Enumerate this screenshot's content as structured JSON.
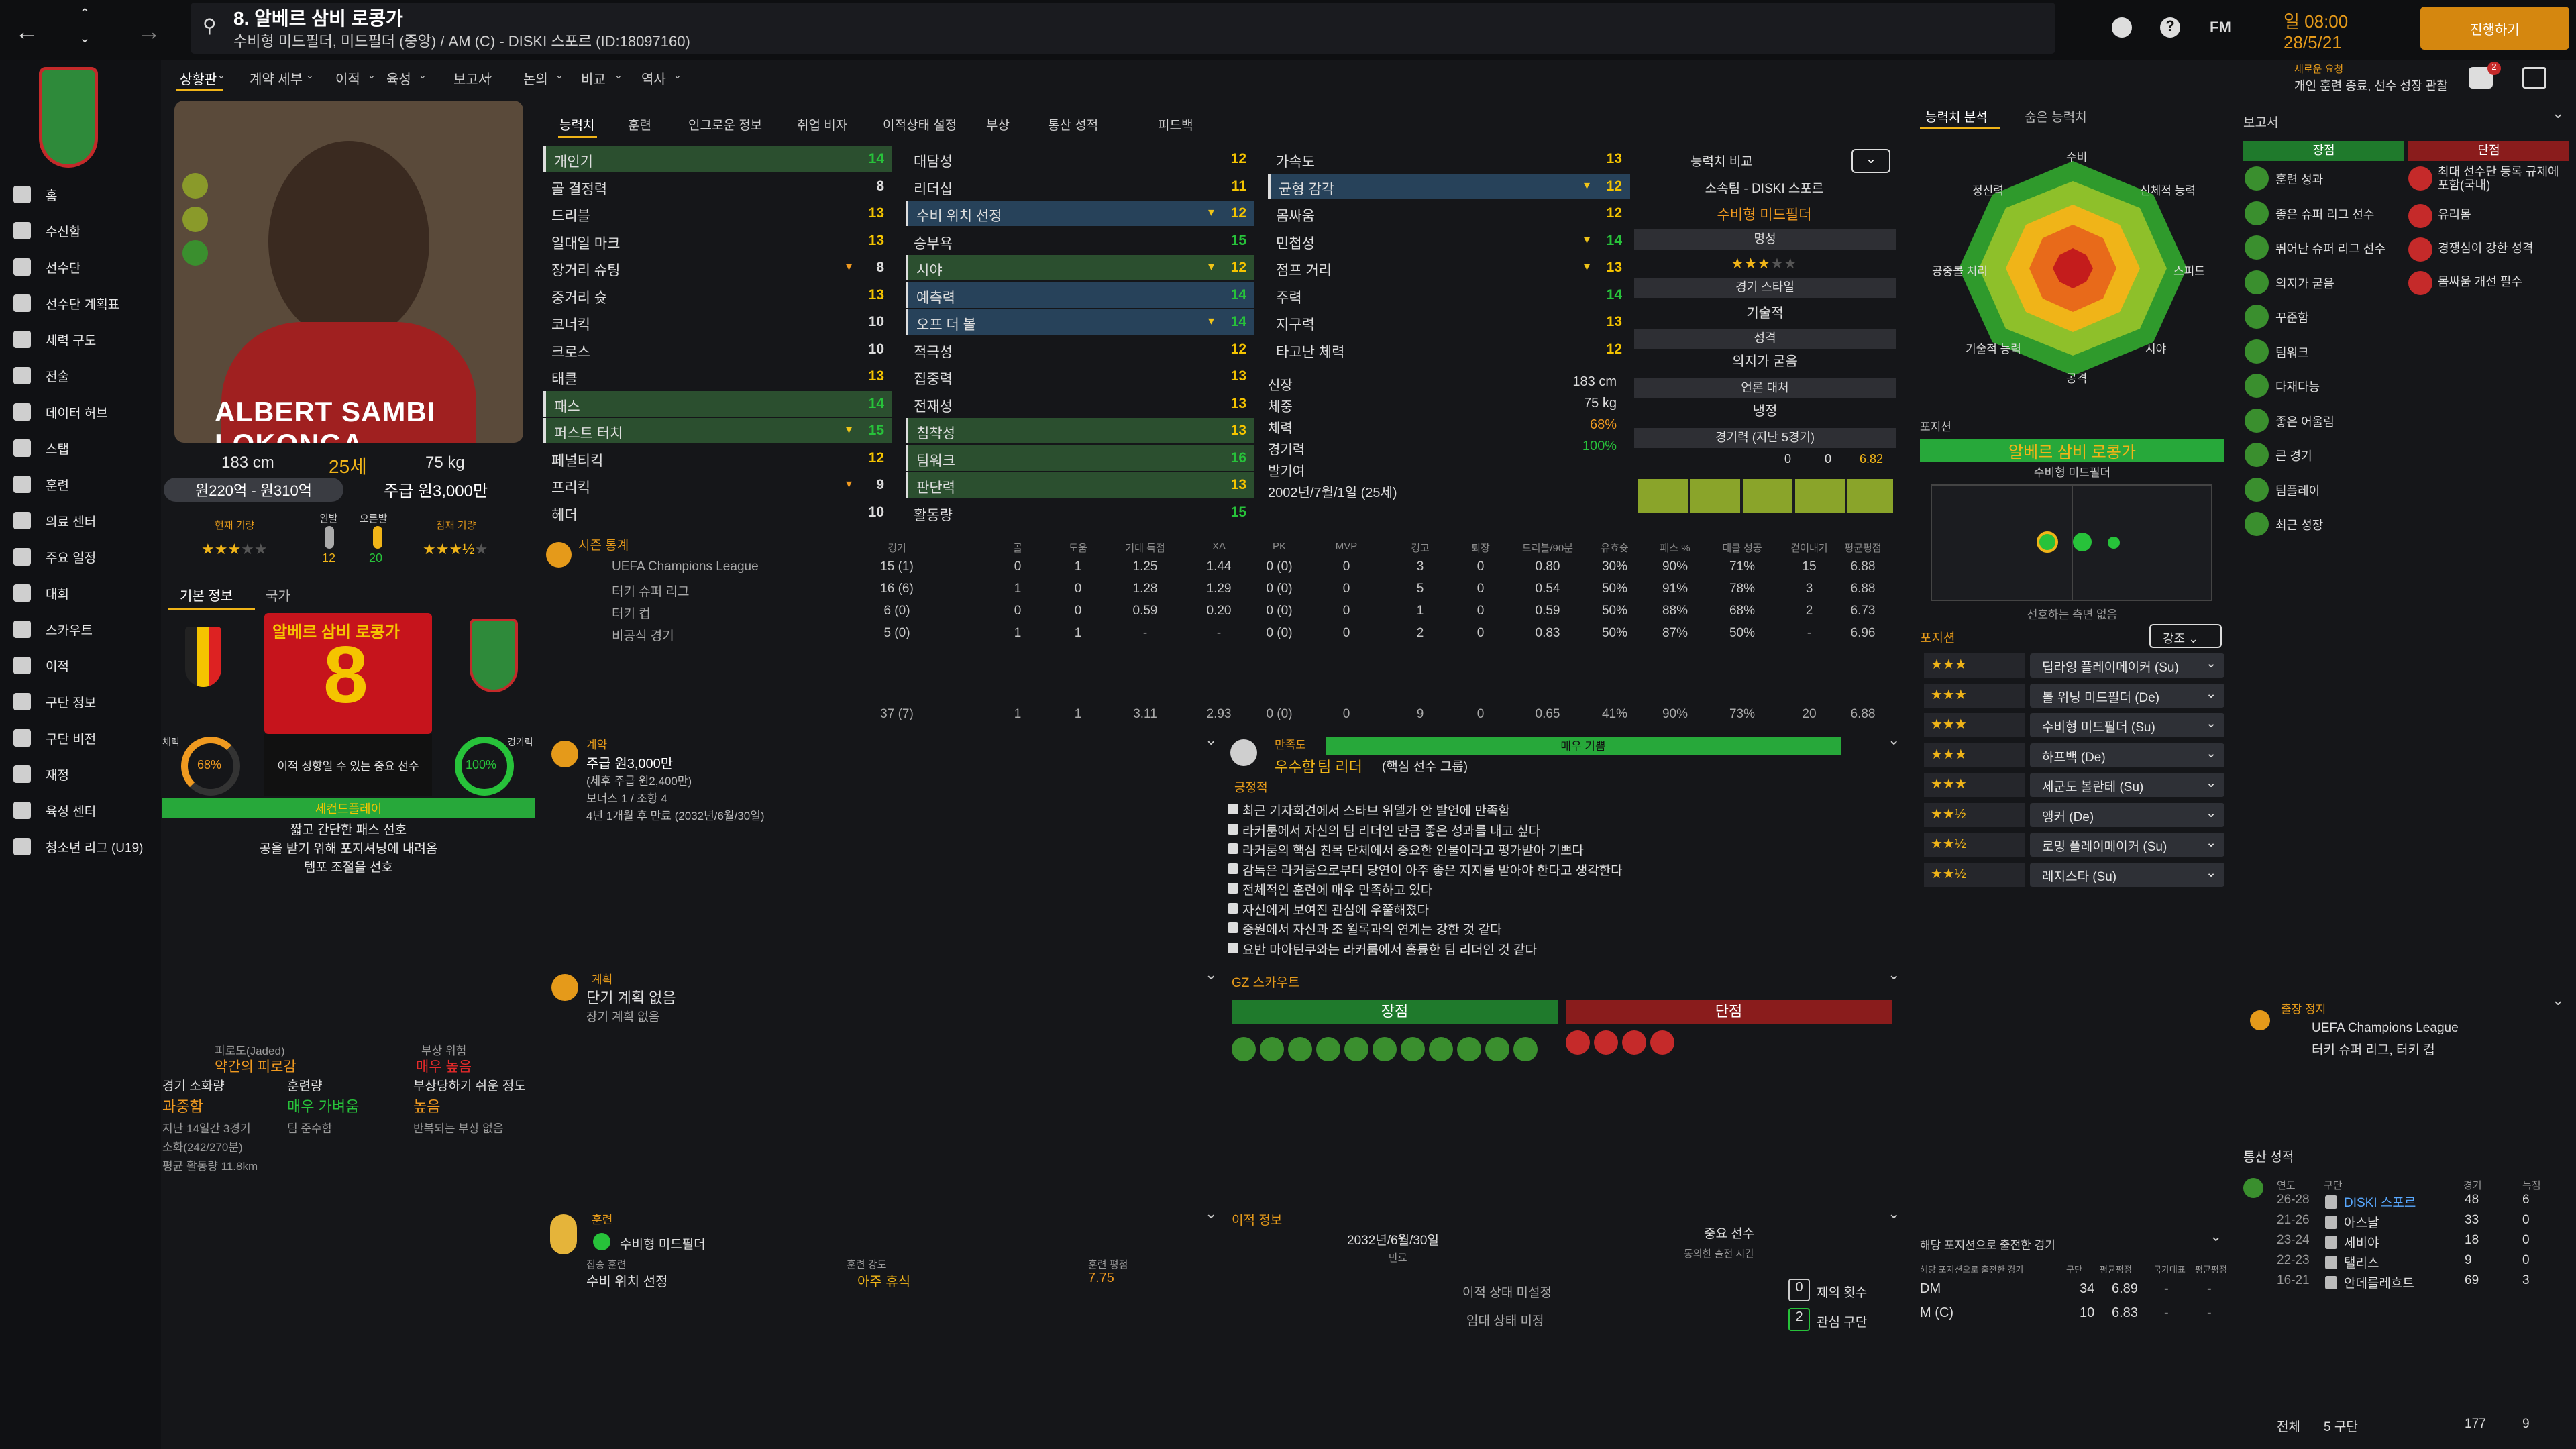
{
  "topbar": {
    "title": "8. 알베르 삼비 로콩가",
    "subtitle": "수비형 미드필더, 미드필더 (중앙) / AM (C) - DISKI 스포르 (ID:18097160)",
    "date_line1": "일 08:00",
    "date_line2": "28/5/21",
    "continue": "진행하기",
    "notif_title": "새로운 요청",
    "notif_text": "개인 훈련 종료, 선수 성장 관찰",
    "fm": "FM"
  },
  "menu": [
    "상황판",
    "계약 세부",
    "이적",
    "육성",
    "보고서",
    "논의",
    "비교",
    "역사"
  ],
  "sidebar": [
    "홈",
    "수신함",
    "선수단",
    "선수단 계획표",
    "세력 구도",
    "전술",
    "데이터 허브",
    "스탭",
    "훈련",
    "의료 센터",
    "주요 일정",
    "대회",
    "스카우트",
    "이적",
    "구단 정보",
    "구단 비전",
    "재정",
    "육성 센터",
    "청소년 리그 (U19)"
  ],
  "player": {
    "name_card": "ALBERT SAMBI LOKONGA",
    "height": "183 cm",
    "age": "25세",
    "weight": "75 kg",
    "value": "원220억 - 원310억",
    "wage": "주급 원3,000만",
    "cur_lbl": "현재 기량",
    "foot_l": "왼발",
    "foot_r": "오른발",
    "foot_lv": "12",
    "foot_rv": "20",
    "pot_lbl": "잠재 기량"
  },
  "info_tabs": [
    "기본 정보",
    "국가"
  ],
  "shirt": {
    "name": "알베르 삼비 로콩가",
    "number": "8",
    "phys_lbl": "체력",
    "phys": "68%",
    "sharp_lbl": "경기력",
    "sharp": "100%",
    "desc": "이적 성향일 수 있는 중요 선수",
    "role": "세컨드플레이",
    "traits": [
      "짧고 간단한 패스 선호",
      "공을 받기 위해 포지셔닝에 내려옴",
      "템포 조절을 선호"
    ]
  },
  "fatigue": {
    "lbl1": "피로도(Jaded)",
    "lbl2": "부상 위험",
    "v1": "약간의 피로감",
    "v2": "매우 높음",
    "l3": "경기 소화량",
    "l4": "훈련량",
    "l5": "부상당하기 쉬운 정도",
    "v3": "과중함",
    "v4": "매우 가벼움",
    "v5": "높음",
    "n1": "지난 14일간 3경기",
    "n2": "팀 준수함",
    "n3": "반복되는 부상 없음",
    "n4": "소화(242/270분)",
    "n5": "평균 활동량 11.8km"
  },
  "tabs": [
    "능력치",
    "훈련",
    "인그로운 정보",
    "취업 비자",
    "이적상태 설정",
    "부상",
    "통산 성적",
    "피드백"
  ],
  "attr_col1": [
    [
      "개인기",
      "14"
    ],
    [
      "골 결정력",
      "8"
    ],
    [
      "드리블",
      "13"
    ],
    [
      "일대일 마크",
      "13"
    ],
    [
      "장거리 슈팅",
      "8"
    ],
    [
      "중거리 슛",
      "13"
    ],
    [
      "코너킥",
      "10"
    ],
    [
      "크로스",
      "10"
    ],
    [
      "태클",
      "13"
    ],
    [
      "패스",
      "14"
    ],
    [
      "퍼스트 터치",
      "15"
    ],
    [
      "페널티킥",
      "12"
    ],
    [
      "프리킥",
      "9"
    ],
    [
      "헤더",
      "10"
    ]
  ],
  "attr_col2": [
    [
      "대담성",
      "12"
    ],
    [
      "리더십",
      "11"
    ],
    [
      "수비 위치 선정",
      "12"
    ],
    [
      "승부욕",
      "15"
    ],
    [
      "시야",
      "12"
    ],
    [
      "예측력",
      "14"
    ],
    [
      "오프 더 볼",
      "14"
    ],
    [
      "적극성",
      "12"
    ],
    [
      "집중력",
      "13"
    ],
    [
      "전재성",
      "13"
    ],
    [
      "침착성",
      "13"
    ],
    [
      "팀워크",
      "16"
    ],
    [
      "판단력",
      "13"
    ],
    [
      "활동량",
      "15"
    ]
  ],
  "attr_col3": [
    [
      "가속도",
      "13"
    ],
    [
      "균형 감각",
      "12"
    ],
    [
      "몸싸움",
      "12"
    ],
    [
      "민첩성",
      "14"
    ],
    [
      "점프 거리",
      "13"
    ],
    [
      "주력",
      "14"
    ],
    [
      "지구력",
      "13"
    ],
    [
      "타고난 체력",
      "12"
    ]
  ],
  "phys_info": [
    [
      "신장",
      "183 cm"
    ],
    [
      "체중",
      "75 kg"
    ],
    [
      "체력",
      "68%"
    ],
    [
      "경기력",
      "100%"
    ],
    [
      "발기여",
      ""
    ],
    [
      "2002년/7월/1일 (25세)",
      ""
    ]
  ],
  "compare": {
    "title": "능력치 비교",
    "club": "소속팀 - DISKI 스포르",
    "role": "수비형 미드필더",
    "rep": "명성",
    "style_lbl": "경기 스타일",
    "style": "기술적",
    "pers_lbl": "성격",
    "pers": "의지가 굳음",
    "media_lbl": "언론 대처",
    "media": "냉정",
    "form_lbl": "경기력 (지난 5경기)",
    "form_a": "0",
    "form_b": "0",
    "form_c": "6.82"
  },
  "radar": {
    "tabs": [
      "능력치 분석",
      "숨은 능력치"
    ],
    "labels": [
      "수비",
      "신체적 능력",
      "스피드",
      "시야",
      "공격",
      "기술적 능력",
      "공중볼 처리",
      "정신력"
    ]
  },
  "position": {
    "title": "포지션",
    "name": "알베르 삼비 로콩가",
    "role": "수비형 미드필더",
    "note": "선호하는 측면 없음",
    "sub": "포지션",
    "strength": "강조",
    "roles": [
      "딥라잉 플레이메이커 (Su)",
      "볼 위닝 미드필더 (De)",
      "수비형 미드필더 (Su)",
      "하프백 (De)",
      "세군도 볼란테 (Su)",
      "앵커 (De)",
      "로밍 플레이메이커 (Su)",
      "레지스타 (Su)"
    ]
  },
  "season": {
    "title": "시즌 통계",
    "cols": [
      "경기",
      "골",
      "도움",
      "기대 득점",
      "XA",
      "PK",
      "MVP",
      "경고",
      "퇴장",
      "드리블/90분",
      "유효슛",
      "패스 %",
      "태클 성공",
      "걷어내기",
      "평균평점"
    ],
    "rows": [
      [
        "UEFA Champions League",
        "15 (1)",
        "0",
        "1",
        "1.25",
        "1.44",
        "0 (0)",
        "0",
        "3",
        "0",
        "0.80",
        "30%",
        "90%",
        "71%",
        "15",
        "6.88"
      ],
      [
        "터키 슈퍼 리그",
        "16 (6)",
        "1",
        "0",
        "1.28",
        "1.29",
        "0 (0)",
        "0",
        "5",
        "0",
        "0.54",
        "50%",
        "91%",
        "78%",
        "3",
        "6.88"
      ],
      [
        "터키 컵",
        "6 (0)",
        "0",
        "0",
        "0.59",
        "0.20",
        "0 (0)",
        "0",
        "1",
        "0",
        "0.59",
        "50%",
        "88%",
        "68%",
        "2",
        "6.73"
      ],
      [
        "비공식 경기",
        "5 (0)",
        "1",
        "1",
        "-",
        "-",
        "0 (0)",
        "0",
        "2",
        "0",
        "0.83",
        "50%",
        "87%",
        "50%",
        "-",
        "6.96"
      ]
    ],
    "total": [
      "37 (7)",
      "1",
      "1",
      "3.11",
      "2.93",
      "0 (0)",
      "0",
      "9",
      "0",
      "0.65",
      "41%",
      "90%",
      "73%",
      "20",
      "6.88"
    ]
  },
  "contract": {
    "title": "계약",
    "wage": "주급 원3,000만",
    "wage2": "(세후 주급 원2,400만)",
    "bonus": "보너스 1 / 조항 4",
    "expiry": "4년 1개월 후 만료 (2032년/6월/30일)"
  },
  "plan": {
    "title": "계획",
    "v": "단기 계획 없음",
    "v2": "장기 계획 없음"
  },
  "happiness": {
    "title": "만족도",
    "bar": "매우 기쁨",
    "v": "우수함",
    "role": "팀 리더",
    "sub": "(핵심 선수 그룹)",
    "pos": "긍정적",
    "items": [
      "최근 기자회견에서 스타브 위델가 안 발언에 만족함",
      "라커룸에서 자신의 팀 리더인 만큼 좋은 성과를 내고 싶다",
      "라커룸의 핵심 친목 단체에서 중요한 인물이라고 평가받아 기쁘다",
      "감독은 라커룸으로부터 당연이 아주 좋은 지지를 받아야 한다고 생각한다",
      "전체적인 훈련에 매우 만족하고 있다",
      "자신에게 보여진 관심에 우쭐해졌다",
      "중원에서 자신과 조 윌록과의 연계는 강한 것 같다",
      "요반 마아틴쿠와는 라커룸에서 훌륭한 팀 리더인 것 같다"
    ]
  },
  "scout": {
    "title": "GZ 스카우트",
    "pro": "장점",
    "con": "단점"
  },
  "training": {
    "title": "훈련",
    "role": "수비형 미드필더",
    "focus_lbl": "집중 훈련",
    "focus": "수비 위치 선정",
    "int_lbl": "훈련 강도",
    "int": "아주 휴식",
    "rat_lbl": "훈련 평점",
    "rat": "7.75"
  },
  "transfer": {
    "title": "이적 정보",
    "date": "2032년/6월/30일",
    "date_lbl": "만료",
    "imp": "중요 선수",
    "imp_lbl": "동의한 출전 시간",
    "s1": "이적 상태 미설정",
    "s2": "임대 상태 미정",
    "n1": "0",
    "l1": "제의 횟수",
    "n2": "2",
    "l2": "관심 구단"
  },
  "report": {
    "title": "보고서",
    "pro": "장점",
    "con": "단점",
    "pros": [
      "훈련 성과",
      "좋은 슈퍼 리그 선수",
      "뛰어난 슈퍼 리그 선수",
      "의지가 굳음",
      "꾸준함",
      "팀워크",
      "다재다능",
      "좋은 어울림",
      "큰 경기",
      "팀플레이",
      "최근 성장"
    ],
    "cons": [
      "최대 선수단 등록 규제에 포함(국내)",
      "유리몸",
      "경쟁심이 강한 성격",
      "몸싸움 개선 필수"
    ]
  },
  "ban": {
    "title": "출장 정지",
    "items": [
      "UEFA Champions League",
      "터키 슈퍼 리그, 터키 컵"
    ]
  },
  "history": {
    "title": "통산 성적",
    "cols": [
      "연도",
      "구단",
      "경기",
      "득점"
    ],
    "rows": [
      [
        "26-28",
        "DISKI 스포르",
        "48",
        "6"
      ],
      [
        "21-26",
        "아스날",
        "33",
        "0"
      ],
      [
        "23-24",
        "세비야",
        "18",
        "0"
      ],
      [
        "22-23",
        "탤리스",
        "9",
        "0"
      ],
      [
        "16-21",
        "안데를레흐트",
        "69",
        "3"
      ]
    ],
    "total_l": "전체",
    "total_c": "5 구단",
    "total_g": "177",
    "total_s": "9"
  },
  "posapp": {
    "title": "해당 포지션으로 출전한 경기",
    "sub": "해당 포지션으로 출전한 경기",
    "cols": [
      "구단",
      "평균평점",
      "국가대표",
      "평균평점"
    ],
    "rows": [
      [
        "DM",
        "34",
        "6.89",
        "-",
        "-"
      ],
      [
        "M (C)",
        "10",
        "6.83",
        "-",
        "-"
      ]
    ]
  },
  "colors": {
    "accent": "#e59a1a",
    "green": "#27c23a",
    "red": "#c52a2a"
  }
}
